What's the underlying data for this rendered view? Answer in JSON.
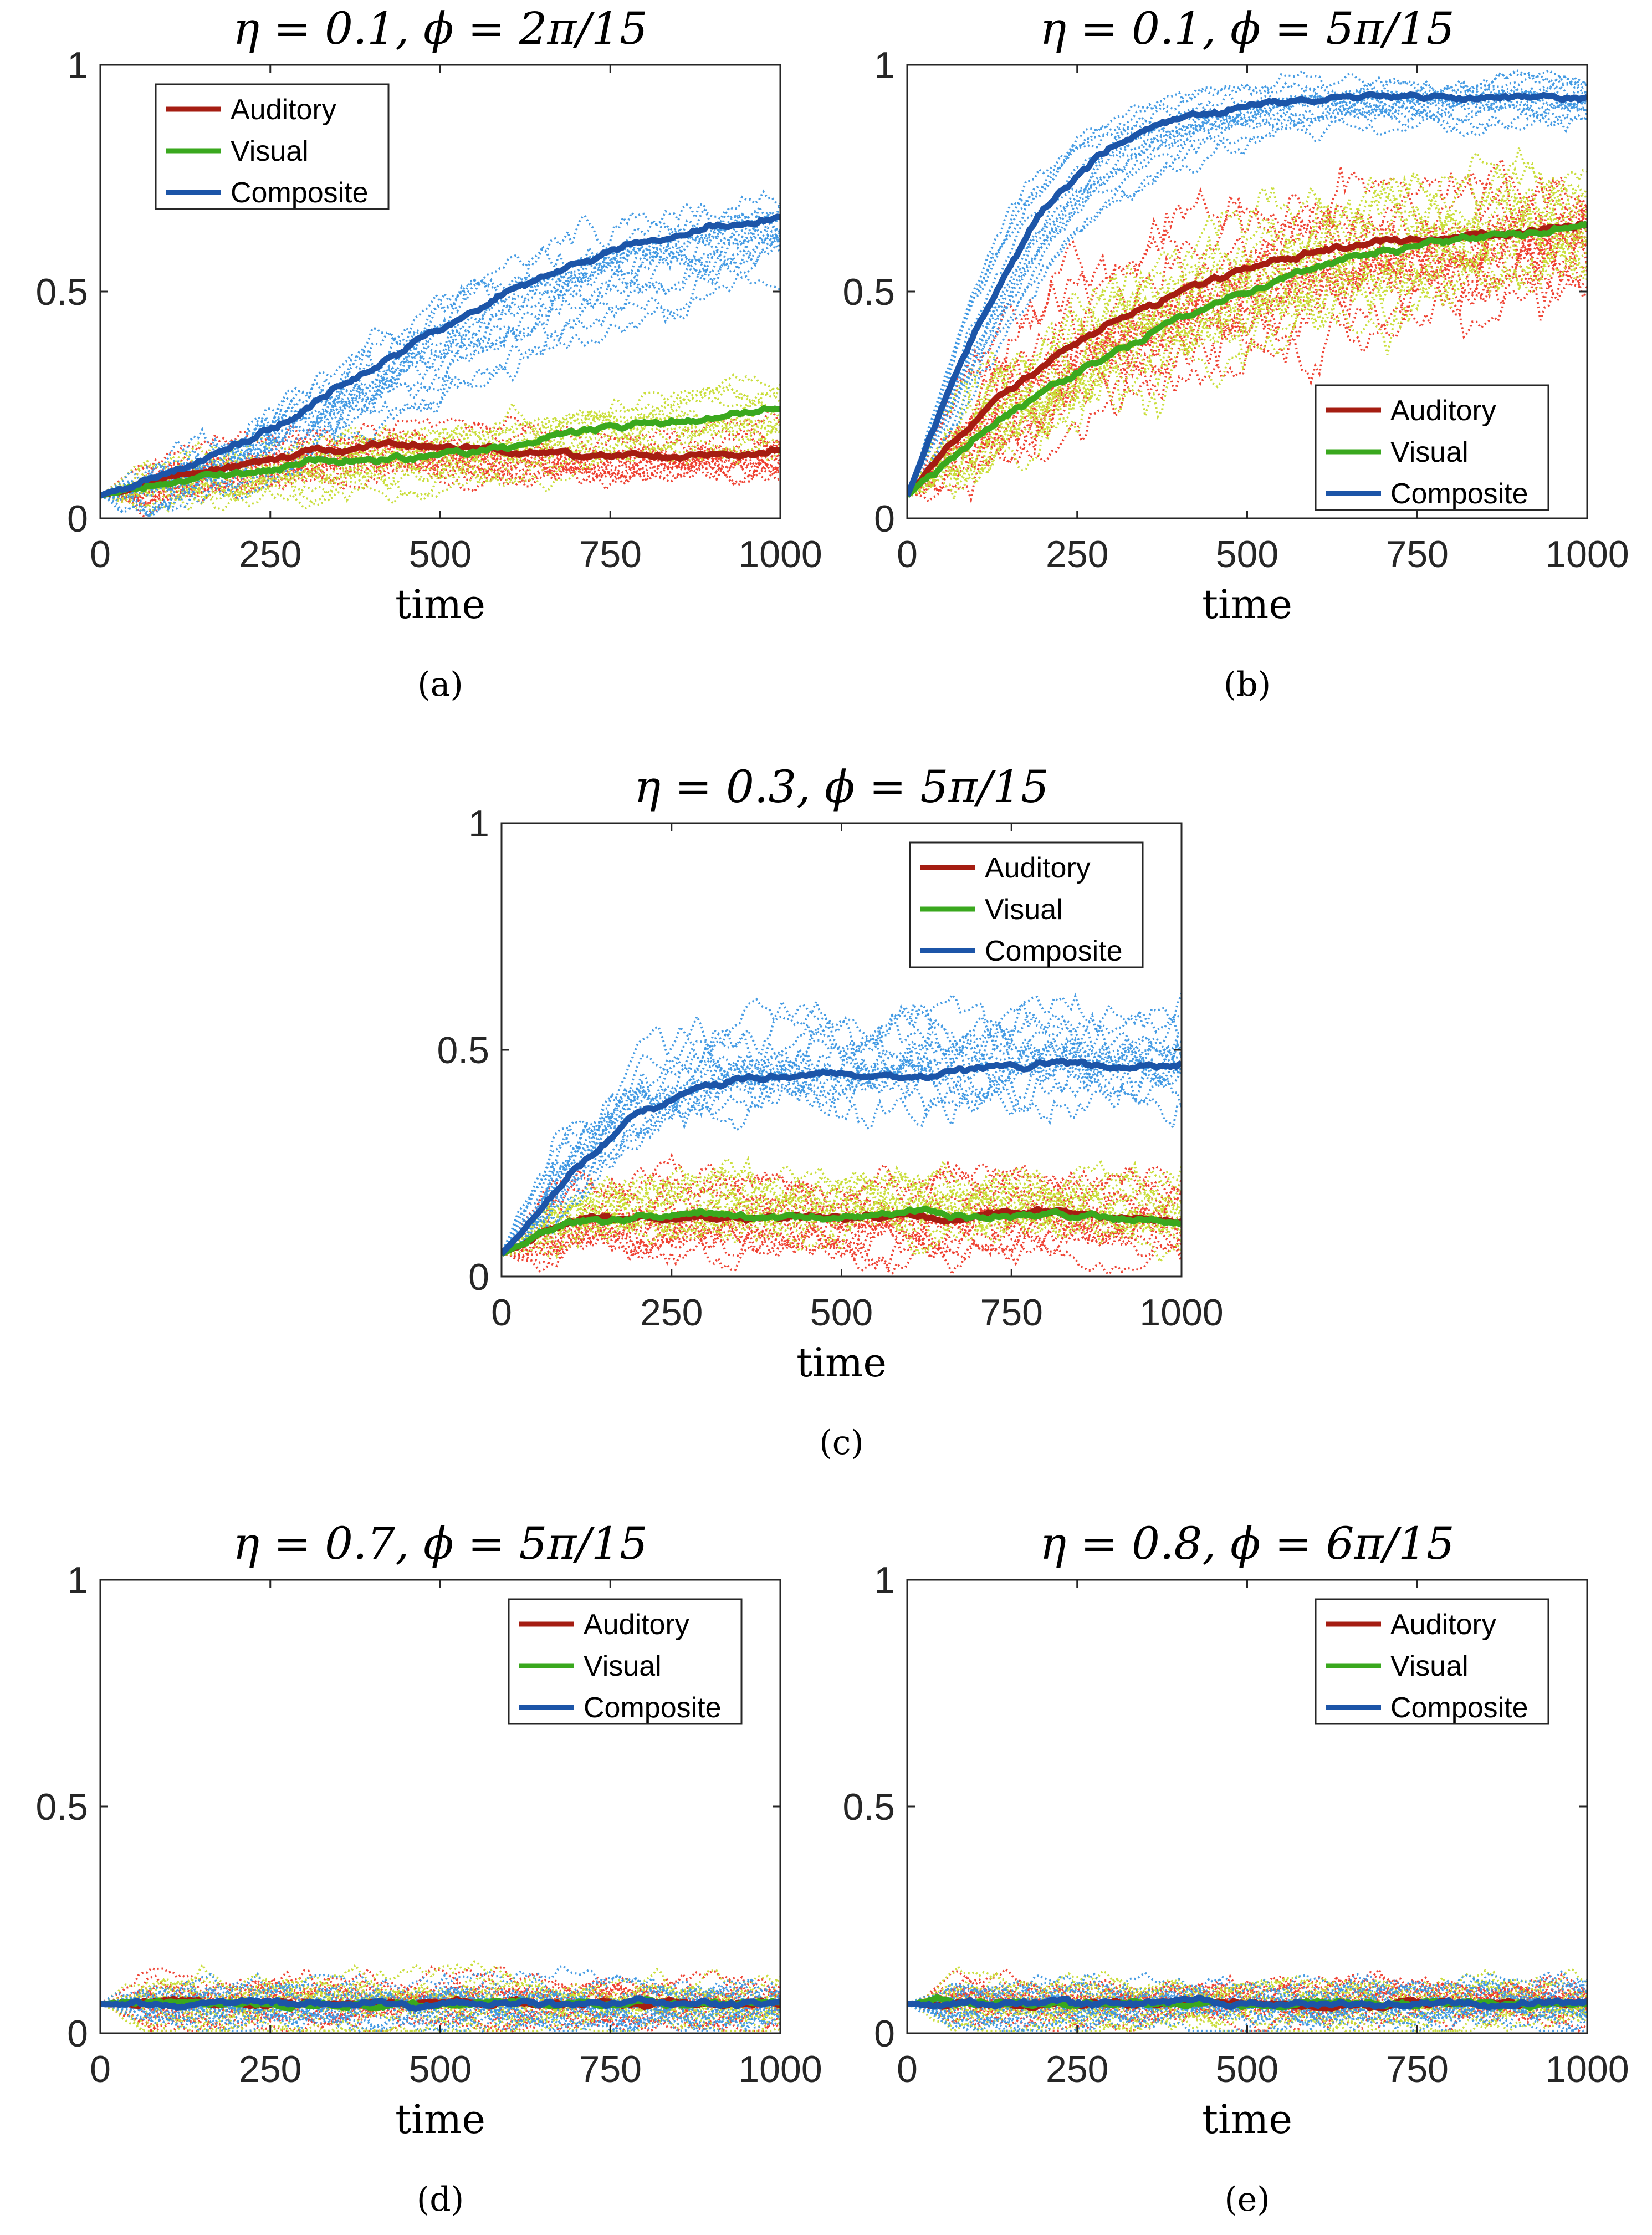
{
  "colors": {
    "auditory": "#a51d12",
    "visual": "#3aa81e",
    "composite": "#1c55a8",
    "auditory_trials": "#ee3b2b",
    "visual_trials": "#c7dc33",
    "composite_trials": "#3c97e3",
    "axis": "#262626"
  },
  "chart_data": [
    {
      "id": "a",
      "type": "line",
      "title": "η = 0.1, ϕ = 2π/15",
      "panel_label": "(a)",
      "xlabel": "time",
      "ylabel": "",
      "xlim": [
        0,
        1000
      ],
      "ylim": [
        0,
        1
      ],
      "xticks": [
        "0",
        "250",
        "500",
        "750",
        "1000"
      ],
      "yticks": [
        "0",
        "0.5",
        "1"
      ],
      "legend_position": "top-left",
      "legend": [
        "Auditory",
        "Visual",
        "Composite"
      ],
      "series": [
        {
          "name": "Auditory",
          "x": [
            0,
            100,
            200,
            300,
            400,
            500,
            600,
            700,
            800,
            900,
            1000
          ],
          "values": [
            0.05,
            0.09,
            0.12,
            0.14,
            0.16,
            0.16,
            0.15,
            0.14,
            0.14,
            0.14,
            0.15
          ],
          "noise": 0.05
        },
        {
          "name": "Visual",
          "x": [
            0,
            100,
            200,
            300,
            400,
            500,
            600,
            700,
            800,
            900,
            1000
          ],
          "values": [
            0.05,
            0.08,
            0.1,
            0.12,
            0.13,
            0.14,
            0.16,
            0.19,
            0.21,
            0.22,
            0.24
          ],
          "noise": 0.05
        },
        {
          "name": "Composite",
          "x": [
            0,
            100,
            200,
            300,
            400,
            500,
            600,
            700,
            800,
            900,
            1000
          ],
          "values": [
            0.05,
            0.1,
            0.16,
            0.24,
            0.33,
            0.42,
            0.5,
            0.56,
            0.61,
            0.64,
            0.66
          ],
          "noise": 0.07
        }
      ]
    },
    {
      "id": "b",
      "type": "line",
      "title": "η = 0.1, ϕ = 5π/15",
      "panel_label": "(b)",
      "xlabel": "time",
      "ylabel": "",
      "xlim": [
        0,
        1000
      ],
      "ylim": [
        0,
        1
      ],
      "xticks": [
        "0",
        "250",
        "500",
        "750",
        "1000"
      ],
      "yticks": [
        "0",
        "0.5",
        "1"
      ],
      "legend_position": "bottom-right",
      "legend": [
        "Auditory",
        "Visual",
        "Composite"
      ],
      "series": [
        {
          "name": "Auditory",
          "x": [
            0,
            100,
            200,
            300,
            400,
            500,
            600,
            700,
            800,
            900,
            1000
          ],
          "values": [
            0.05,
            0.22,
            0.34,
            0.43,
            0.5,
            0.55,
            0.59,
            0.61,
            0.62,
            0.63,
            0.65
          ],
          "noise": 0.12
        },
        {
          "name": "Visual",
          "x": [
            0,
            100,
            200,
            300,
            400,
            500,
            600,
            700,
            800,
            900,
            1000
          ],
          "values": [
            0.05,
            0.18,
            0.28,
            0.36,
            0.44,
            0.5,
            0.55,
            0.59,
            0.61,
            0.63,
            0.65
          ],
          "noise": 0.12
        },
        {
          "name": "Composite",
          "x": [
            0,
            100,
            200,
            300,
            400,
            500,
            600,
            700,
            800,
            900,
            1000
          ],
          "values": [
            0.05,
            0.42,
            0.68,
            0.82,
            0.88,
            0.91,
            0.92,
            0.93,
            0.93,
            0.93,
            0.93
          ],
          "noise": 0.04
        }
      ]
    },
    {
      "id": "c",
      "type": "line",
      "title": "η = 0.3, ϕ = 5π/15",
      "panel_label": "(c)",
      "xlabel": "time",
      "ylabel": "",
      "xlim": [
        0,
        1000
      ],
      "ylim": [
        0,
        1
      ],
      "xticks": [
        "0",
        "250",
        "500",
        "750",
        "1000"
      ],
      "yticks": [
        "0",
        "0.5",
        "1"
      ],
      "legend_position": "top-right",
      "legend": [
        "Auditory",
        "Visual",
        "Composite"
      ],
      "series": [
        {
          "name": "Auditory",
          "x": [
            0,
            100,
            200,
            300,
            400,
            500,
            600,
            700,
            800,
            900,
            1000
          ],
          "values": [
            0.05,
            0.12,
            0.13,
            0.13,
            0.13,
            0.13,
            0.13,
            0.13,
            0.15,
            0.13,
            0.12
          ],
          "noise": 0.07
        },
        {
          "name": "Visual",
          "x": [
            0,
            100,
            200,
            300,
            400,
            500,
            600,
            700,
            800,
            900,
            1000
          ],
          "values": [
            0.05,
            0.12,
            0.13,
            0.14,
            0.13,
            0.13,
            0.14,
            0.13,
            0.14,
            0.13,
            0.12
          ],
          "noise": 0.07
        },
        {
          "name": "Composite",
          "x": [
            0,
            100,
            200,
            300,
            400,
            500,
            600,
            700,
            800,
            900,
            1000
          ],
          "values": [
            0.05,
            0.22,
            0.36,
            0.42,
            0.44,
            0.45,
            0.44,
            0.46,
            0.47,
            0.46,
            0.47
          ],
          "noise": 0.08
        }
      ]
    },
    {
      "id": "d",
      "type": "line",
      "title": "η = 0.7, ϕ = 5π/15",
      "panel_label": "(d)",
      "xlabel": "time",
      "ylabel": "",
      "xlim": [
        0,
        1000
      ],
      "ylim": [
        0,
        1
      ],
      "xticks": [
        "0",
        "250",
        "500",
        "750",
        "1000"
      ],
      "yticks": [
        "0",
        "0.5",
        "1"
      ],
      "legend_position": "top-right",
      "legend": [
        "Auditory",
        "Visual",
        "Composite"
      ],
      "series": [
        {
          "name": "Auditory",
          "x": [
            0,
            250,
            500,
            750,
            1000
          ],
          "values": [
            0.065,
            0.065,
            0.065,
            0.065,
            0.065
          ],
          "noise": 0.045
        },
        {
          "name": "Visual",
          "x": [
            0,
            250,
            500,
            750,
            1000
          ],
          "values": [
            0.065,
            0.065,
            0.065,
            0.065,
            0.065
          ],
          "noise": 0.045
        },
        {
          "name": "Composite",
          "x": [
            0,
            250,
            500,
            750,
            1000
          ],
          "values": [
            0.065,
            0.065,
            0.065,
            0.065,
            0.065
          ],
          "noise": 0.045
        }
      ]
    },
    {
      "id": "e",
      "type": "line",
      "title": "η = 0.8, ϕ = 6π/15",
      "panel_label": "(e)",
      "xlabel": "time",
      "ylabel": "",
      "xlim": [
        0,
        1000
      ],
      "ylim": [
        0,
        1
      ],
      "xticks": [
        "0",
        "250",
        "500",
        "750",
        "1000"
      ],
      "yticks": [
        "0",
        "0.5",
        "1"
      ],
      "legend_position": "top-right",
      "legend": [
        "Auditory",
        "Visual",
        "Composite"
      ],
      "series": [
        {
          "name": "Auditory",
          "x": [
            0,
            250,
            500,
            750,
            1000
          ],
          "values": [
            0.065,
            0.065,
            0.065,
            0.065,
            0.065
          ],
          "noise": 0.045
        },
        {
          "name": "Visual",
          "x": [
            0,
            250,
            500,
            750,
            1000
          ],
          "values": [
            0.065,
            0.065,
            0.065,
            0.065,
            0.065
          ],
          "noise": 0.045
        },
        {
          "name": "Composite",
          "x": [
            0,
            250,
            500,
            750,
            1000
          ],
          "values": [
            0.065,
            0.065,
            0.065,
            0.065,
            0.065
          ],
          "noise": 0.045
        }
      ]
    }
  ]
}
